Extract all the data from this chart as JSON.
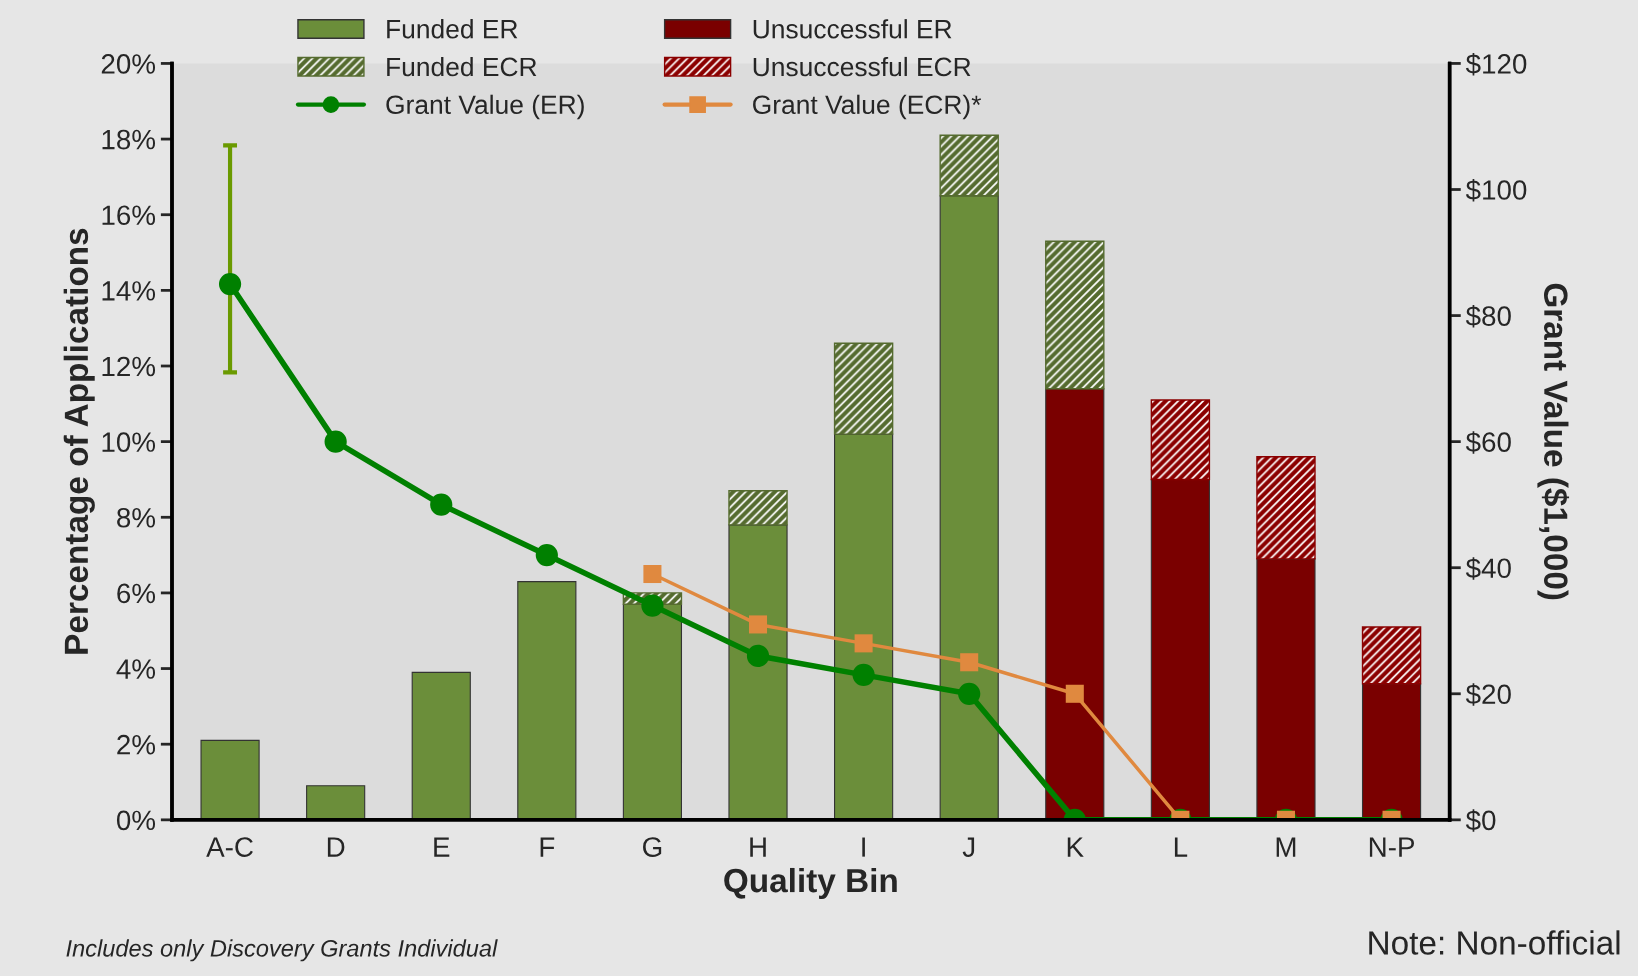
{
  "chart_data": {
    "type": "bar",
    "stacked": true,
    "xlabel": "Quality Bin",
    "ylabel": "Percentage of Applications",
    "y2label": "Grant Value ($1,000)",
    "categories": [
      "A-C",
      "D",
      "E",
      "F",
      "G",
      "H",
      "I",
      "J",
      "K",
      "L",
      "M",
      "N-P"
    ],
    "series": [
      {
        "name": "Funded ER",
        "color": "#6b8e3a",
        "values": [
          2.1,
          0.9,
          3.9,
          6.3,
          5.7,
          7.8,
          10.2,
          16.5,
          null,
          null,
          null,
          null
        ]
      },
      {
        "name": "Unsuccessful ER",
        "color": "#7a0000",
        "values": [
          null,
          null,
          null,
          null,
          null,
          null,
          null,
          null,
          11.4,
          9.0,
          6.9,
          3.6
        ]
      },
      {
        "name": "Funded ECR",
        "color": "#556b2f",
        "values": [
          null,
          null,
          null,
          null,
          0.3,
          0.9,
          2.4,
          1.6,
          3.9,
          null,
          null,
          null
        ]
      },
      {
        "name": "Unsuccessful ECR",
        "color": "#8b0000",
        "values": [
          null,
          null,
          null,
          null,
          null,
          null,
          null,
          null,
          null,
          2.1,
          2.7,
          1.5
        ]
      },
      {
        "name": "Grant Value (ER)",
        "type": "line",
        "axis": "y2",
        "color": "#008000",
        "marker": "circle",
        "values": [
          85,
          60,
          50,
          42,
          34,
          26,
          23,
          20,
          0,
          0,
          0,
          0
        ],
        "errors": [
          [
            71,
            107
          ],
          null,
          null,
          null,
          null,
          null,
          null,
          null,
          null,
          null,
          null,
          null
        ]
      },
      {
        "name": "Grant Value (ECR)*",
        "type": "line",
        "axis": "y2",
        "color": "#e0893f",
        "marker": "square",
        "values": [
          null,
          null,
          null,
          null,
          39,
          31,
          28,
          25,
          20,
          0,
          0,
          0
        ]
      }
    ],
    "ylim": [
      0,
      20
    ],
    "yticks": [
      {
        "value": 0,
        "label": "0%"
      },
      {
        "value": 2,
        "label": "2%"
      },
      {
        "value": 4,
        "label": "4%"
      },
      {
        "value": 6,
        "label": "6%"
      },
      {
        "value": 8,
        "label": "8%"
      },
      {
        "value": 10,
        "label": "10%"
      },
      {
        "value": 12,
        "label": "12%"
      },
      {
        "value": 14,
        "label": "14%"
      },
      {
        "value": 16,
        "label": "16%"
      },
      {
        "value": 18,
        "label": "18%"
      },
      {
        "value": 20,
        "label": "20%"
      }
    ],
    "y2lim": [
      0,
      120
    ],
    "y2ticks": [
      {
        "value": 0,
        "label": "$0"
      },
      {
        "value": 20,
        "label": "$20"
      },
      {
        "value": 40,
        "label": "$40"
      },
      {
        "value": 60,
        "label": "$60"
      },
      {
        "value": 80,
        "label": "$80"
      },
      {
        "value": 100,
        "label": "$100"
      },
      {
        "value": 120,
        "label": "$120"
      }
    ],
    "legend": "top left",
    "grid": false,
    "annotations": [
      "Includes only Discovery Grants Individual",
      "Note: Non-official"
    ]
  }
}
